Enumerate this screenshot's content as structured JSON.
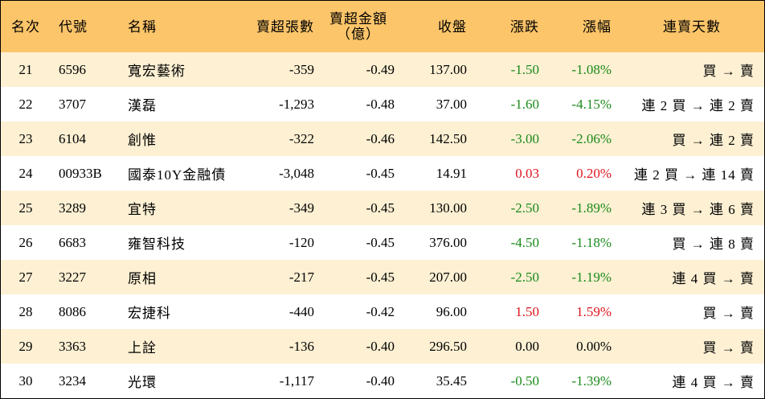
{
  "headers": {
    "rank": "名次",
    "code": "代號",
    "name": "名稱",
    "net_lots": "賣超張數",
    "net_amount_line1": "賣超金額",
    "net_amount_line2": "（億）",
    "close": "收盤",
    "change": "漲跌",
    "change_pct": "漲幅",
    "streak": "連賣天數"
  },
  "rows": [
    {
      "rank": "21",
      "code": "6596",
      "name": "寬宏藝術",
      "net_lots": "-359",
      "net_amount": "-0.49",
      "close": "137.00",
      "change": "-1.50",
      "change_pct": "-1.08%",
      "direction": "neg",
      "streak": "買 → 賣"
    },
    {
      "rank": "22",
      "code": "3707",
      "name": "漢磊",
      "net_lots": "-1,293",
      "net_amount": "-0.48",
      "close": "37.00",
      "change": "-1.60",
      "change_pct": "-4.15%",
      "direction": "neg",
      "streak": "連 2 買 → 連 2 賣"
    },
    {
      "rank": "23",
      "code": "6104",
      "name": "創惟",
      "net_lots": "-322",
      "net_amount": "-0.46",
      "close": "142.50",
      "change": "-3.00",
      "change_pct": "-2.06%",
      "direction": "neg",
      "streak": "買 → 連 2 賣"
    },
    {
      "rank": "24",
      "code": "00933B",
      "name": "國泰10Y金融債",
      "net_lots": "-3,048",
      "net_amount": "-0.45",
      "close": "14.91",
      "change": "0.03",
      "change_pct": "0.20%",
      "direction": "pos",
      "streak": "連 2 買 → 連 14 賣"
    },
    {
      "rank": "25",
      "code": "3289",
      "name": "宜特",
      "net_lots": "-349",
      "net_amount": "-0.45",
      "close": "130.00",
      "change": "-2.50",
      "change_pct": "-1.89%",
      "direction": "neg",
      "streak": "連 3 買 → 連 6 賣"
    },
    {
      "rank": "26",
      "code": "6683",
      "name": "雍智科技",
      "net_lots": "-120",
      "net_amount": "-0.45",
      "close": "376.00",
      "change": "-4.50",
      "change_pct": "-1.18%",
      "direction": "neg",
      "streak": "買 → 連 8 賣"
    },
    {
      "rank": "27",
      "code": "3227",
      "name": "原相",
      "net_lots": "-217",
      "net_amount": "-0.45",
      "close": "207.00",
      "change": "-2.50",
      "change_pct": "-1.19%",
      "direction": "neg",
      "streak": "連 4 買 → 賣"
    },
    {
      "rank": "28",
      "code": "8086",
      "name": "宏捷科",
      "net_lots": "-440",
      "net_amount": "-0.42",
      "close": "96.00",
      "change": "1.50",
      "change_pct": "1.59%",
      "direction": "pos",
      "streak": "買 → 賣"
    },
    {
      "rank": "29",
      "code": "3363",
      "name": "上詮",
      "net_lots": "-136",
      "net_amount": "-0.40",
      "close": "296.50",
      "change": "0.00",
      "change_pct": "0.00%",
      "direction": "zero",
      "streak": "買 → 賣"
    },
    {
      "rank": "30",
      "code": "3234",
      "name": "光環",
      "net_lots": "-1,117",
      "net_amount": "-0.40",
      "close": "35.45",
      "change": "-0.50",
      "change_pct": "-1.39%",
      "direction": "neg",
      "streak": "連 4 買 → 賣"
    }
  ],
  "colors": {
    "header_bg": "#fcc56a",
    "stripe_bg": "#fdf0d3",
    "up": "#e0141e",
    "down": "#1a8a1a"
  }
}
